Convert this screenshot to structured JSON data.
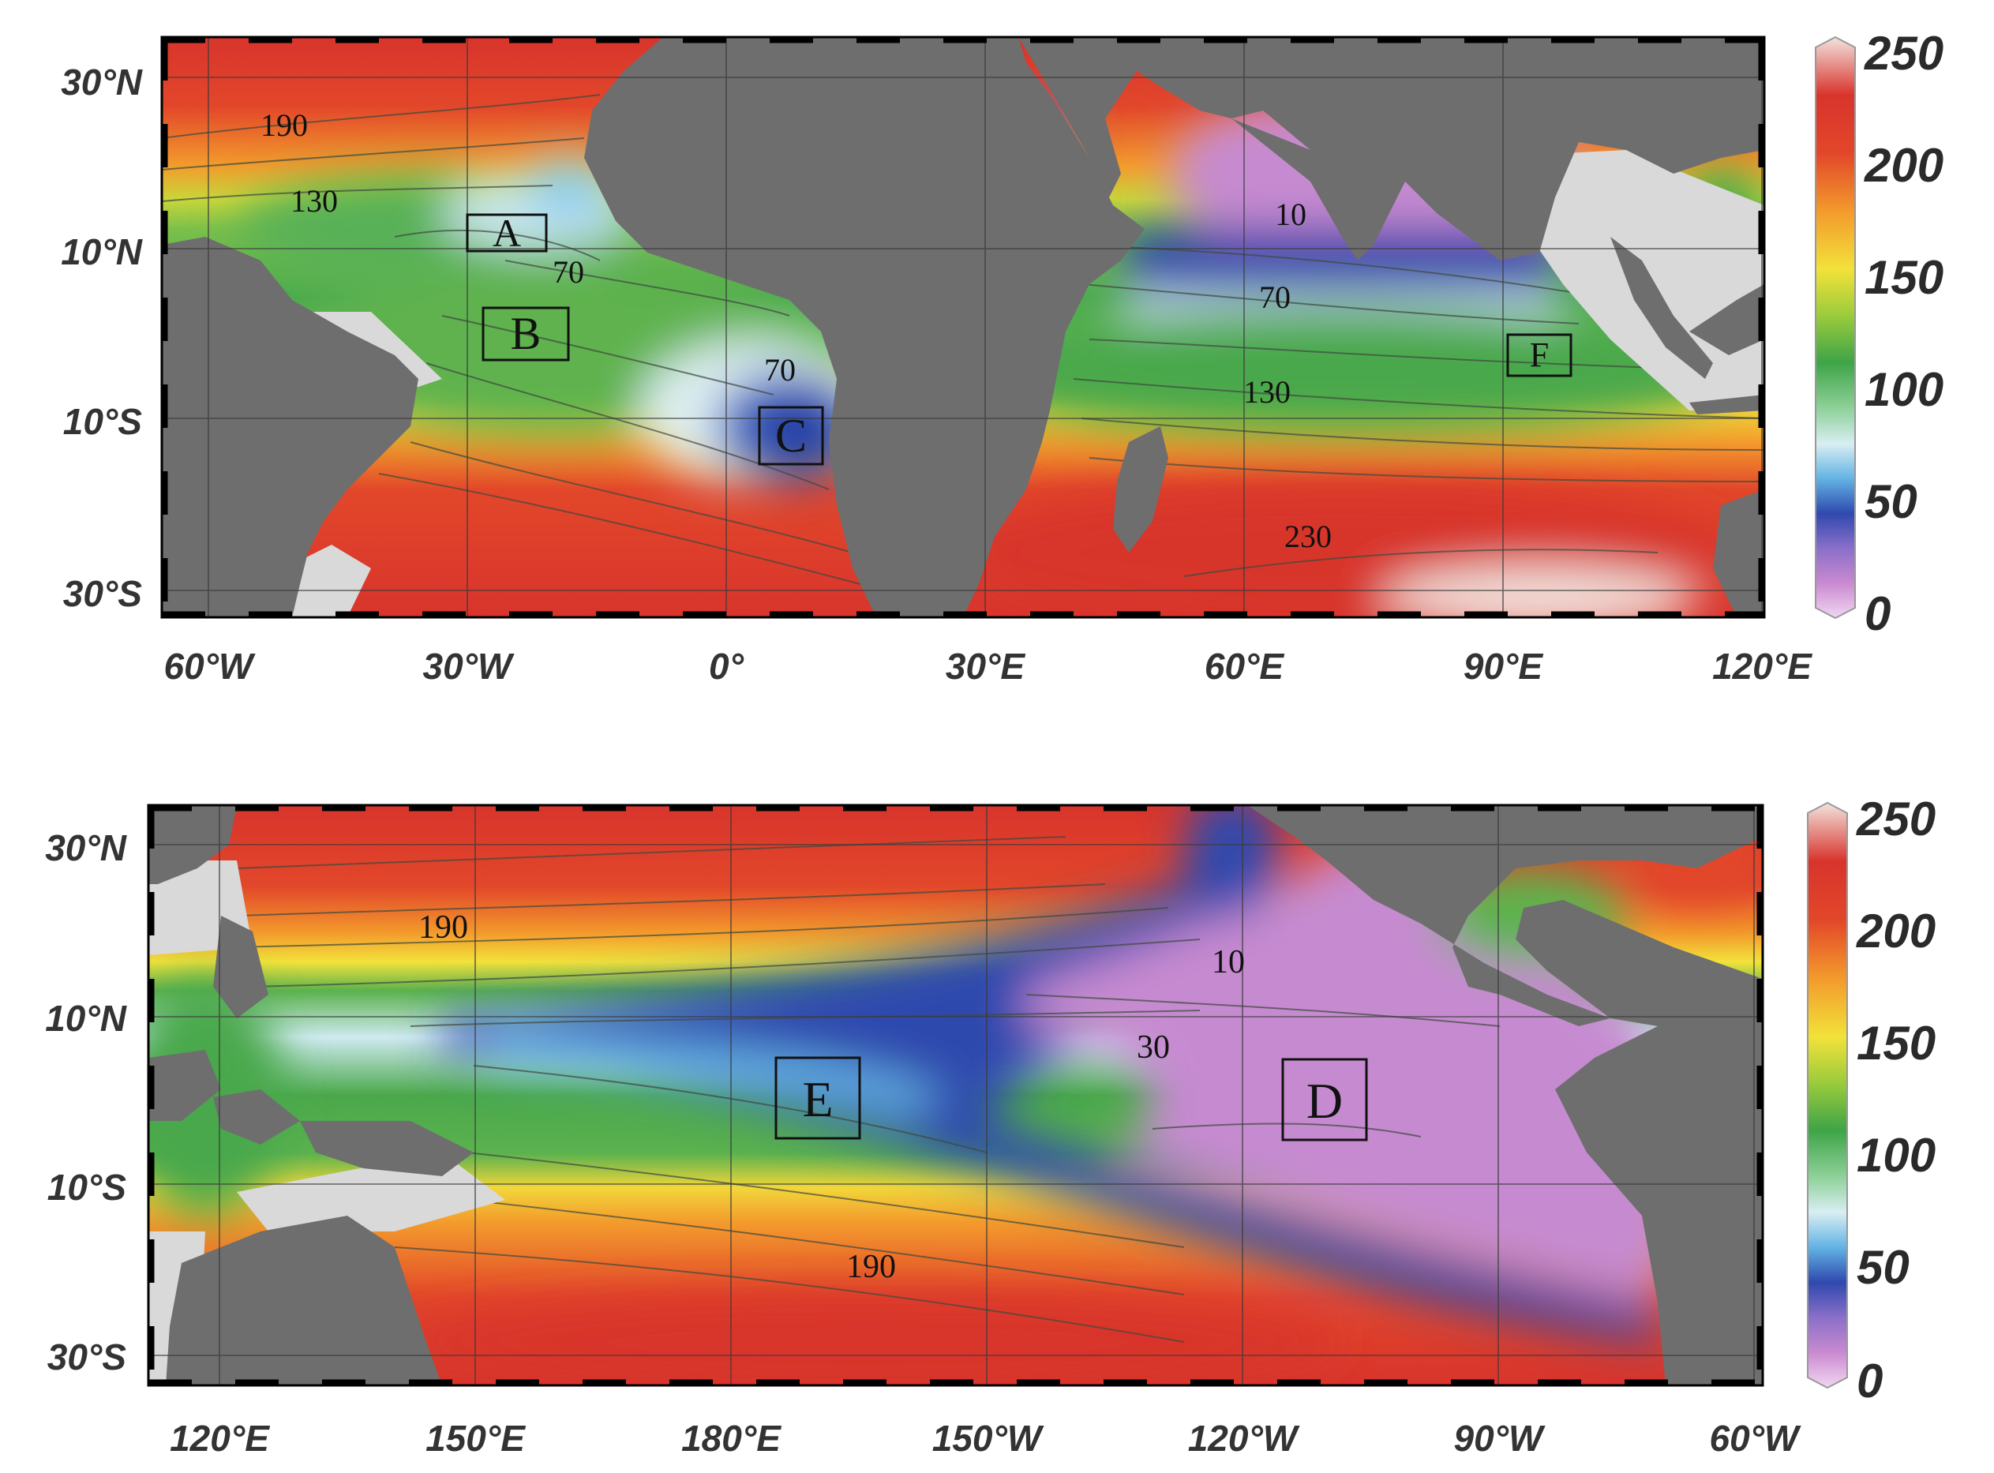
{
  "colors": {
    "land": "#6e6e6e",
    "coastal_shelf": "#d9d9d9",
    "frame_dash": "#000000",
    "grid": "#3a3a3a",
    "contour": "#3f4a3f"
  },
  "colorbar": {
    "ticks": [
      "250",
      "200",
      "150",
      "100",
      "50",
      "0"
    ],
    "stops": [
      {
        "v": 0,
        "c": "#f2d6f2"
      },
      {
        "v": 15,
        "c": "#c98ad0"
      },
      {
        "v": 30,
        "c": "#8a6fc9"
      },
      {
        "v": 45,
        "c": "#2f49ae"
      },
      {
        "v": 60,
        "c": "#63b3e4"
      },
      {
        "v": 75,
        "c": "#d8eef2"
      },
      {
        "v": 90,
        "c": "#8fd19a"
      },
      {
        "v": 110,
        "c": "#3ea447"
      },
      {
        "v": 130,
        "c": "#9acb3c"
      },
      {
        "v": 150,
        "c": "#f2e23a"
      },
      {
        "v": 175,
        "c": "#f39a2c"
      },
      {
        "v": 200,
        "c": "#e2472a"
      },
      {
        "v": 225,
        "c": "#d8342c"
      },
      {
        "v": 250,
        "c": "#f3e3de"
      }
    ]
  },
  "maps": [
    {
      "name": "atlantic-indian",
      "x_ticks": [
        "60°W",
        "30°W",
        "0°",
        "30°E",
        "60°E",
        "90°E",
        "120°E"
      ],
      "y_ticks": [
        "30°N",
        "10°N",
        "10°S",
        "30°S"
      ],
      "contour_labels": [
        "190",
        "130",
        "70",
        "70",
        "10",
        "70",
        "130",
        "230"
      ],
      "regions": [
        "A",
        "B",
        "C",
        "F"
      ]
    },
    {
      "name": "pacific",
      "x_ticks": [
        "120°E",
        "150°E",
        "180°E",
        "150°W",
        "120°W",
        "90°W",
        "60°W"
      ],
      "y_ticks": [
        "30°N",
        "10°N",
        "10°S",
        "30°S"
      ],
      "contour_labels": [
        "190",
        "10",
        "30",
        "190"
      ],
      "regions": [
        "E",
        "D"
      ]
    }
  ]
}
